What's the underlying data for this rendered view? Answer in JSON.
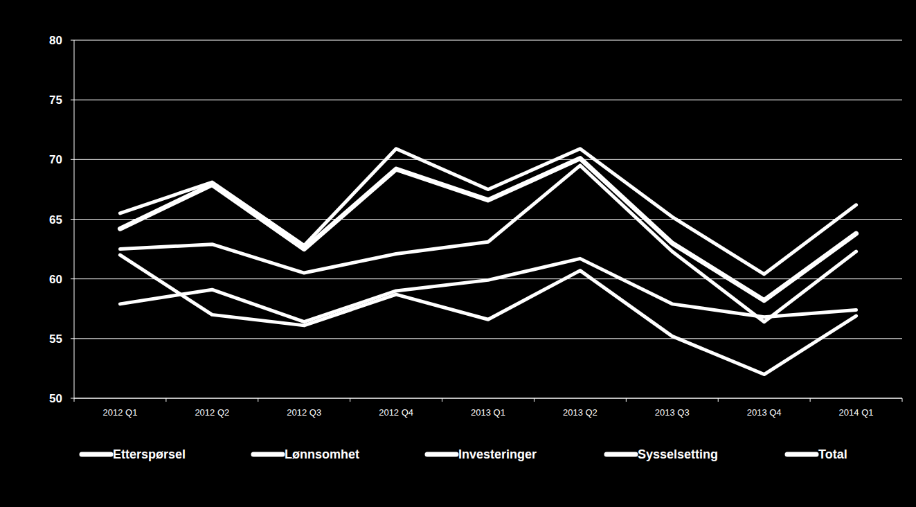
{
  "chart_data": {
    "type": "line",
    "categories": [
      "2012 Q1",
      "2012 Q2",
      "2012 Q3",
      "2012 Q4",
      "2013 Q1",
      "2013 Q2",
      "2013 Q3",
      "2013 Q4",
      "2014 Q1"
    ],
    "series": [
      {
        "name": "Etterspørsel",
        "color": "#ffffff",
        "values": [
          65.5,
          68.1,
          62.8,
          70.9,
          67.5,
          70.9,
          65.2,
          60.4,
          66.2
        ]
      },
      {
        "name": "Lønnsomhet",
        "color": "#ffffff",
        "values": [
          62.5,
          62.9,
          60.5,
          62.1,
          63.1,
          69.5,
          62.3,
          56.4,
          62.3
        ]
      },
      {
        "name": "Investeringer",
        "color": "#ffffff",
        "values": [
          62.0,
          57.0,
          56.1,
          58.7,
          56.6,
          60.7,
          55.2,
          52.0,
          56.9
        ]
      },
      {
        "name": "Sysselsetting",
        "color": "#ffffff",
        "values": [
          57.9,
          59.1,
          56.4,
          59.0,
          59.9,
          61.7,
          57.9,
          56.8,
          57.4
        ]
      },
      {
        "name": "Total",
        "color": "#ffffff",
        "values": [
          64.2,
          67.9,
          62.5,
          69.2,
          66.6,
          70.1,
          63.0,
          58.2,
          63.8
        ]
      }
    ],
    "ylim": [
      50,
      80
    ],
    "yticks": [
      50,
      55,
      60,
      65,
      70,
      75,
      80
    ],
    "grid": true,
    "legend": "bottom"
  }
}
